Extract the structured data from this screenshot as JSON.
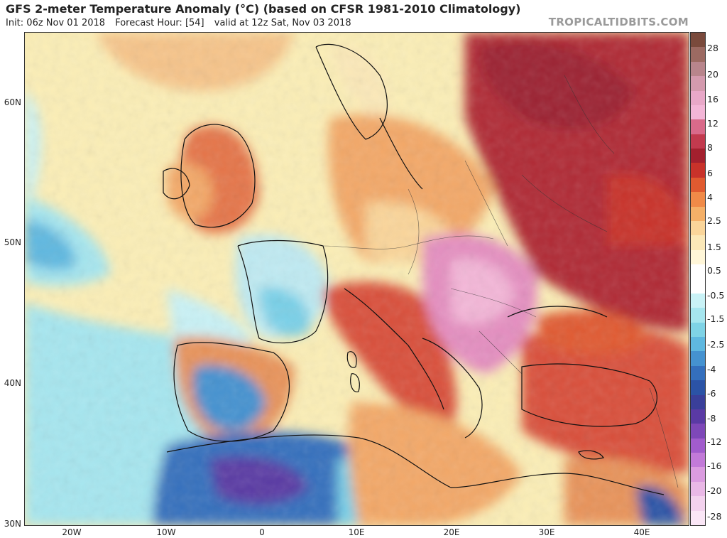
{
  "header": {
    "title": "GFS 2-meter Temperature Anomaly (°C) (based on CFSR 1981-2010 Climatology)",
    "init": "Init: 06z Nov 01 2018",
    "forecast_hour": "Forecast Hour: [54]",
    "valid": "valid at 12z Sat, Nov 03 2018",
    "credit": "TROPICALTIDBITS.COM"
  },
  "axes": {
    "latitudes": [
      "60N",
      "50N",
      "40N",
      "30N"
    ],
    "longitudes": [
      "20W",
      "10W",
      "0",
      "10E",
      "20E",
      "30E",
      "40E"
    ]
  },
  "colorbar": {
    "labels": [
      "28",
      "20",
      "16",
      "12",
      "8",
      "6",
      "4",
      "2.5",
      "1.5",
      "0.5",
      "-0.5",
      "-1.5",
      "-2.5",
      "-4",
      "-6",
      "-8",
      "-12",
      "-16",
      "-20",
      "-28"
    ],
    "colors": [
      "#7a4a3c",
      "#9c6a62",
      "#b8858c",
      "#d49aae",
      "#e8a8c8",
      "#f3b6d7",
      "#d96a8a",
      "#c23a4e",
      "#a3202e",
      "#c8322a",
      "#e05a30",
      "#f08a48",
      "#f5b068",
      "#fad59a",
      "#fbe8b8",
      "#fff6d8",
      "#ffffff",
      "#ffffff",
      "#c9f2f6",
      "#a6e6ef",
      "#7fd3e6",
      "#5fb8e0",
      "#4592d0",
      "#346fbd",
      "#2b53a6",
      "#3a3f9a",
      "#5a3aa4",
      "#7e48b8",
      "#a15ccc",
      "#c27ad8",
      "#db9ce0",
      "#e9b8e6",
      "#f3d2ee",
      "#fae6f6"
    ],
    "top_color": "#7a4a3c"
  },
  "map": {
    "description_colors": {
      "ocean_neutral": "#fbeeb6",
      "cold": "#79d0e8",
      "very_cold": "#2f5fb5",
      "warm": "#f3a867",
      "hot": "#e05a3a",
      "very_hot": "#b02a34",
      "extreme": "#e48ec0"
    }
  }
}
